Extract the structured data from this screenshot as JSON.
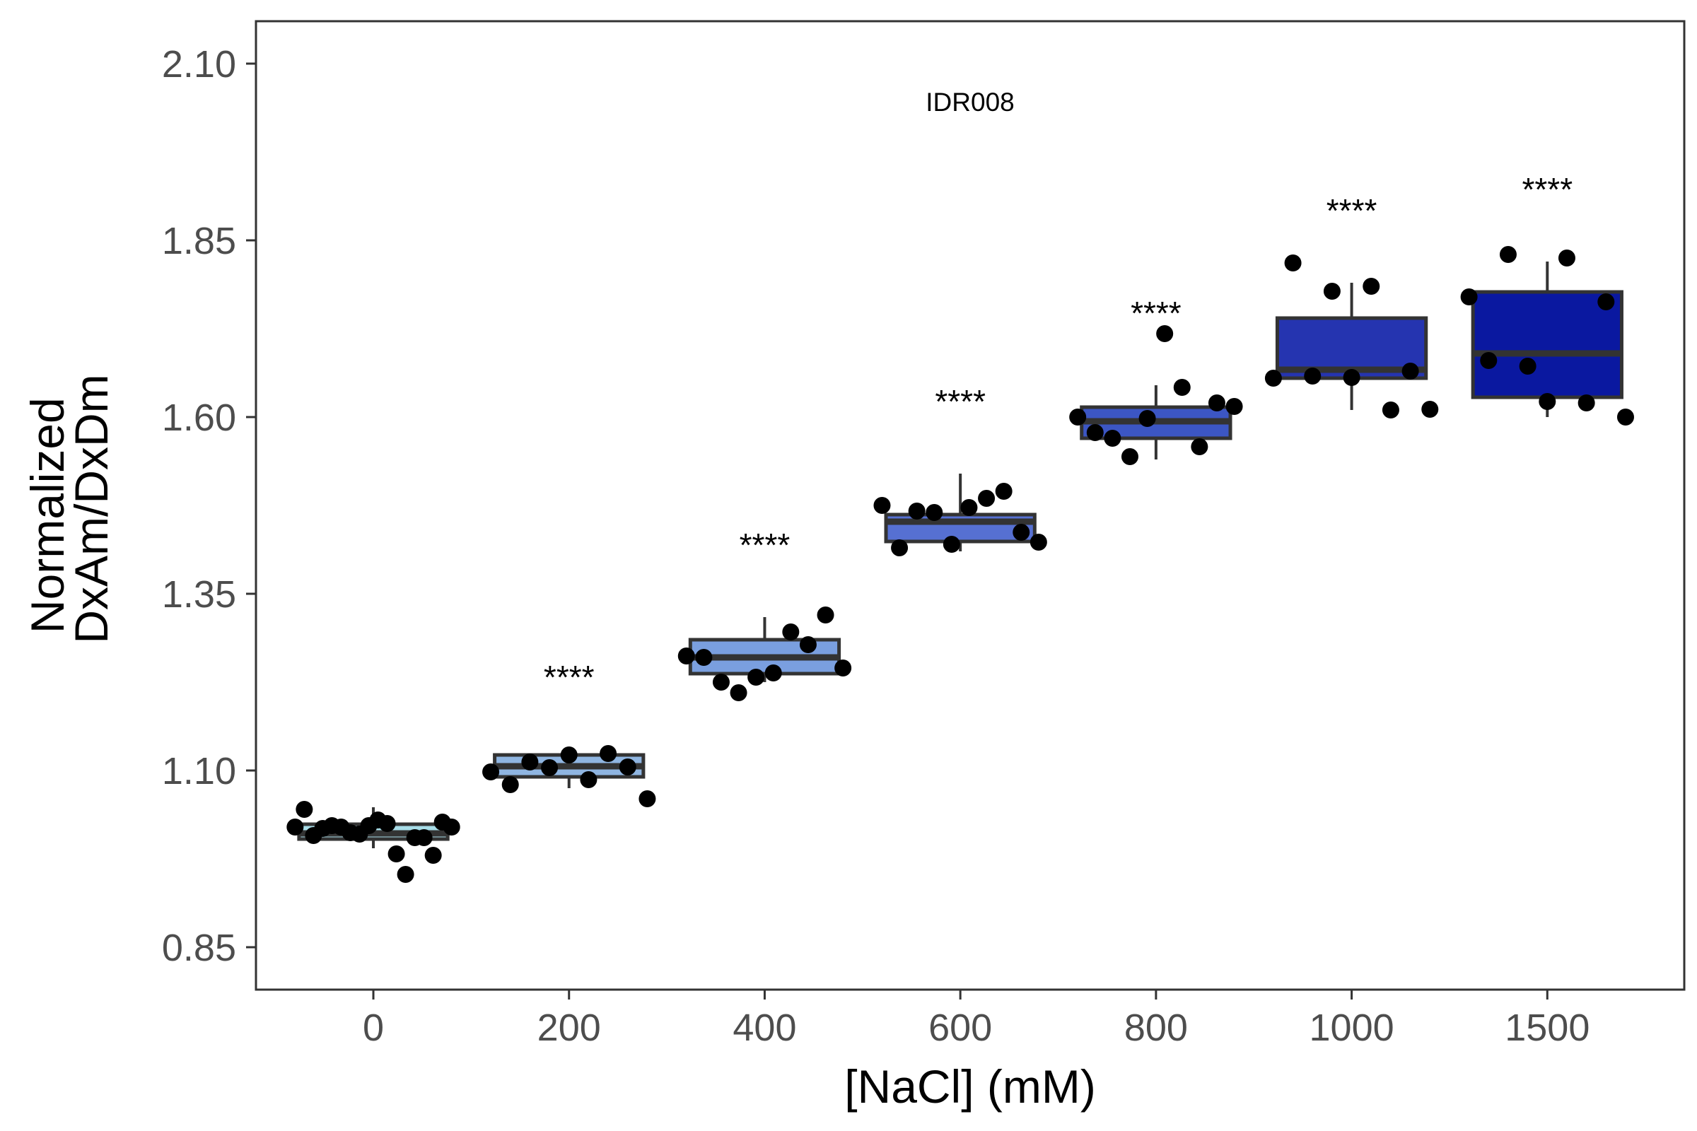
{
  "chart_data": {
    "type": "box",
    "title": "",
    "panel_label": "IDR008",
    "xlabel": "[NaCl] (mM)",
    "ylabel_lines": [
      "Normalized",
      "DxAm/DxDm"
    ],
    "ylim": [
      0.79,
      2.16
    ],
    "yticks": [
      "0.85",
      "1.10",
      "1.35",
      "1.60",
      "1.85",
      "2.10"
    ],
    "categories": [
      "0",
      "200",
      "400",
      "600",
      "800",
      "1000",
      "1500"
    ],
    "fill_colors": [
      "#A8DDE8",
      "#8FB5E1",
      "#7A9FDF",
      "#5670D2",
      "#3C56C4",
      "#2534B0",
      "#0A18A0"
    ],
    "box_stroke": "#333333",
    "point_color": "#000000",
    "grid": false,
    "legend": "none",
    "boxes": [
      {
        "category": "0",
        "whisker_low": 0.99,
        "q1": 1.003,
        "median": 1.011,
        "q3": 1.024,
        "whisker_high": 1.048,
        "significance": ""
      },
      {
        "category": "200",
        "whisker_low": 1.075,
        "q1": 1.091,
        "median": 1.106,
        "q3": 1.122,
        "whisker_high": 1.13,
        "significance": "****"
      },
      {
        "category": "400",
        "whisker_low": 1.225,
        "q1": 1.237,
        "median": 1.26,
        "q3": 1.285,
        "whisker_high": 1.317,
        "significance": "****"
      },
      {
        "category": "600",
        "whisker_low": 1.41,
        "q1": 1.424,
        "median": 1.452,
        "q3": 1.462,
        "whisker_high": 1.52,
        "significance": "****"
      },
      {
        "category": "800",
        "whisker_low": 1.54,
        "q1": 1.57,
        "median": 1.594,
        "q3": 1.614,
        "whisker_high": 1.645,
        "significance": "****"
      },
      {
        "category": "1000",
        "whisker_low": 1.61,
        "q1": 1.655,
        "median": 1.667,
        "q3": 1.74,
        "whisker_high": 1.79,
        "significance": "****"
      },
      {
        "category": "1500",
        "whisker_low": 1.6,
        "q1": 1.628,
        "median": 1.69,
        "q3": 1.777,
        "whisker_high": 1.82,
        "significance": "****"
      }
    ],
    "points": [
      {
        "category": "0",
        "values": [
          1.02,
          1.01,
          1.005,
          1.018,
          1.025,
          1.02,
          1.012,
          1.005,
          1.008,
          1.03,
          1.027,
          1.02,
          0.953,
          1.045,
          1.022,
          0.98,
          1.022,
          0.982
        ]
      },
      {
        "category": "200",
        "values": [
          1.098,
          1.105,
          1.087,
          1.104,
          1.08,
          1.06,
          1.124,
          1.122,
          1.112
        ]
      },
      {
        "category": "400",
        "values": [
          1.262,
          1.278,
          1.232,
          1.26,
          1.32,
          1.238,
          1.225,
          1.245,
          1.296,
          1.21
        ]
      },
      {
        "category": "600",
        "values": [
          1.475,
          1.495,
          1.42,
          1.415,
          1.437,
          1.472,
          1.467,
          1.423,
          1.485,
          1.465
        ]
      },
      {
        "category": "800",
        "values": [
          1.6,
          1.558,
          1.598,
          1.578,
          1.62,
          1.718,
          1.57,
          1.615,
          1.642,
          1.544
        ]
      },
      {
        "category": "1000",
        "values": [
          1.655,
          1.665,
          1.785,
          1.778,
          1.818,
          1.611,
          1.61,
          1.656,
          1.658
        ]
      },
      {
        "category": "1500",
        "values": [
          1.77,
          1.763,
          1.825,
          1.672,
          1.68,
          1.6,
          1.62,
          1.622,
          1.83
        ]
      }
    ]
  }
}
